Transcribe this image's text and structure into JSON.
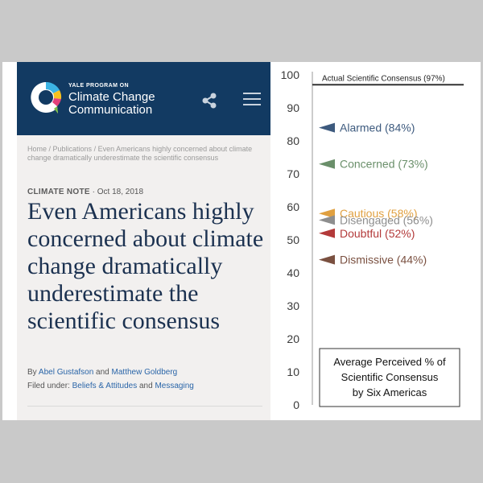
{
  "site": {
    "program_label": "YALE PROGRAM ON",
    "title_line1": "Climate Change",
    "title_line2": "Communication"
  },
  "breadcrumb": {
    "home": "Home",
    "sep1": " / ",
    "publications": "Publications",
    "sep2": " / ",
    "current": "Even Americans highly concerned about climate change dramatically underestimate the scientific consensus"
  },
  "article": {
    "note_label": "CLIMATE NOTE",
    "date": " · Oct 18, 2018",
    "headline": "Even Americans highly concerned about climate change dramatically underestimate the scientific consensus",
    "by_prefix": "By ",
    "author1": "Abel Gustafson",
    "and1": " and ",
    "author2": "Matthew Goldberg",
    "filed_prefix": "Filed under: ",
    "category1": "Beliefs & Attitudes",
    "and2": " and ",
    "category2": "Messaging"
  },
  "icons": {
    "logo": "speech-bubble-logo-icon",
    "share": "share-icon",
    "menu": "hamburger-menu-icon"
  },
  "colors": {
    "header_bg": "#123a62",
    "link": "#2a65a8",
    "headline": "#1b3150"
  },
  "chart_data": {
    "type": "scatter",
    "ylim": [
      0,
      100
    ],
    "yticks": [
      0,
      10,
      20,
      30,
      40,
      50,
      60,
      70,
      80,
      90,
      100
    ],
    "reference_line": {
      "value": 97,
      "label": "Actual Scientific Consensus (97%)"
    },
    "points": [
      {
        "label": "Alarmed (84%)",
        "value": 84,
        "color": "#3d5a7e"
      },
      {
        "label": "Concerned (73%)",
        "value": 73,
        "color": "#6a8f6a"
      },
      {
        "label": "Cautious (58%)",
        "value": 58,
        "color": "#e0a040"
      },
      {
        "label": "Disengaged (56%)",
        "value": 56,
        "color": "#8e8e8e"
      },
      {
        "label": "Doubtful (52%)",
        "value": 52,
        "color": "#b33a3a"
      },
      {
        "label": "Dismissive (44%)",
        "value": 44,
        "color": "#7a5040"
      }
    ],
    "legend_lines": [
      "Average Perceived % of",
      "Scientific Consensus",
      "by Six Americas"
    ]
  }
}
